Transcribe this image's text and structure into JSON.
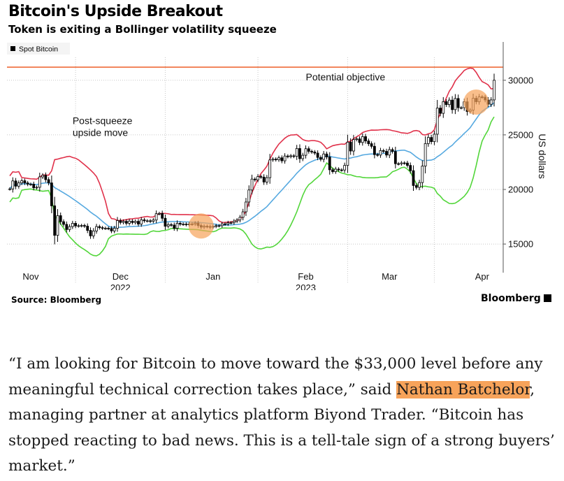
{
  "header": {
    "title": "Bitcoin's Upside Breakout",
    "subtitle": "Token is exiting a Bollinger volatility squeeze"
  },
  "footer": {
    "source": "Source: Bloomberg",
    "brand": "Bloomberg"
  },
  "article": {
    "quote_before": "“I am looking for Bitcoin to move toward the $33,000 level before any meaningful technical correction takes place,” said ",
    "person_name": "Nathan Batchelor",
    "quote_after": ", managing partner at analytics platform Biyond Trader. “Bitcoin has stopped reacting to bad news. This is a tell-tale sign of a strong buyers’ market.”"
  },
  "colors": {
    "upper_band": "#e0314a",
    "moving_average": "#56a9e0",
    "lower_band": "#52d63a",
    "objective_line": "#ef6b3a",
    "highlight": "#f7a35a",
    "candles": "#000000"
  },
  "chart_data": {
    "type": "candlestick",
    "legend": [
      "Spot Bitcoin"
    ],
    "legend_position": "top-left",
    "ylabel": "US dollars",
    "yticks": [
      15000,
      20000,
      25000,
      30000
    ],
    "ylim": [
      12700,
      32100
    ],
    "xlim": [
      "2022-10-25",
      "2023-04-05"
    ],
    "month_labels": [
      {
        "label": "Nov",
        "date": "2022-11-01"
      },
      {
        "label": "Dec",
        "date": "2022-12-01"
      },
      {
        "label": "Jan",
        "date": "2023-01-01"
      },
      {
        "label": "Feb",
        "date": "2023-02-01"
      },
      {
        "label": "Mar",
        "date": "2023-03-01"
      },
      {
        "label": "Apr",
        "date": "2023-04-01"
      }
    ],
    "year_labels": [
      {
        "label": "2022",
        "date": "2022-12-01"
      },
      {
        "label": "2023",
        "date": "2023-02-01"
      }
    ],
    "objective_line": 31200,
    "annotations": [
      {
        "lines": [
          "Potential objective"
        ],
        "x": "2023-02-01",
        "y": 30000
      },
      {
        "lines": [
          "Post-squeeze",
          "upside move"
        ],
        "x": "2022-11-15",
        "y": 26000
      }
    ],
    "highlight_circles": [
      {
        "x": "2022-12-28",
        "y": 16650
      },
      {
        "x": "2023-03-30",
        "y": 28000
      }
    ],
    "closes": [
      [
        "2022-10-25",
        20050
      ],
      [
        "2022-10-26",
        20780
      ],
      [
        "2022-10-27",
        20300
      ],
      [
        "2022-10-28",
        20600
      ],
      [
        "2022-10-29",
        20800
      ],
      [
        "2022-10-30",
        20600
      ],
      [
        "2022-10-31",
        20480
      ],
      [
        "2022-11-01",
        20480
      ],
      [
        "2022-11-02",
        20150
      ],
      [
        "2022-11-03",
        20200
      ],
      [
        "2022-11-04",
        21150
      ],
      [
        "2022-11-05",
        21300
      ],
      [
        "2022-11-06",
        20900
      ],
      [
        "2022-11-07",
        20600
      ],
      [
        "2022-11-08",
        18500
      ],
      [
        "2022-11-09",
        15800
      ],
      [
        "2022-11-10",
        17600
      ],
      [
        "2022-11-11",
        17050
      ],
      [
        "2022-11-12",
        16800
      ],
      [
        "2022-11-13",
        16330
      ],
      [
        "2022-11-14",
        16600
      ],
      [
        "2022-11-15",
        16900
      ],
      [
        "2022-11-16",
        16660
      ],
      [
        "2022-11-17",
        16680
      ],
      [
        "2022-11-18",
        16700
      ],
      [
        "2022-11-19",
        16640
      ],
      [
        "2022-11-20",
        16250
      ],
      [
        "2022-11-21",
        15750
      ],
      [
        "2022-11-22",
        16200
      ],
      [
        "2022-11-23",
        16600
      ],
      [
        "2022-11-24",
        16500
      ],
      [
        "2022-11-25",
        16450
      ],
      [
        "2022-11-26",
        16450
      ],
      [
        "2022-11-27",
        16430
      ],
      [
        "2022-11-28",
        16200
      ],
      [
        "2022-11-29",
        16450
      ],
      [
        "2022-11-30",
        17150
      ],
      [
        "2022-12-01",
        16980
      ],
      [
        "2022-12-02",
        17080
      ],
      [
        "2022-12-03",
        16900
      ],
      [
        "2022-12-04",
        17100
      ],
      [
        "2022-12-05",
        16970
      ],
      [
        "2022-12-06",
        17080
      ],
      [
        "2022-12-07",
        16830
      ],
      [
        "2022-12-08",
        17220
      ],
      [
        "2022-12-09",
        17130
      ],
      [
        "2022-12-10",
        17130
      ],
      [
        "2022-12-11",
        17080
      ],
      [
        "2022-12-12",
        17200
      ],
      [
        "2022-12-13",
        17780
      ],
      [
        "2022-12-14",
        17800
      ],
      [
        "2022-12-15",
        17360
      ],
      [
        "2022-12-16",
        16630
      ],
      [
        "2022-12-17",
        16780
      ],
      [
        "2022-12-18",
        16740
      ],
      [
        "2022-12-19",
        16440
      ],
      [
        "2022-12-20",
        16900
      ],
      [
        "2022-12-21",
        16820
      ],
      [
        "2022-12-22",
        16830
      ],
      [
        "2022-12-23",
        16780
      ],
      [
        "2022-12-24",
        16840
      ],
      [
        "2022-12-25",
        16830
      ],
      [
        "2022-12-26",
        16920
      ],
      [
        "2022-12-27",
        16700
      ],
      [
        "2022-12-28",
        16550
      ],
      [
        "2022-12-29",
        16630
      ],
      [
        "2022-12-30",
        16600
      ],
      [
        "2022-12-31",
        16540
      ],
      [
        "2023-01-01",
        16620
      ],
      [
        "2023-01-02",
        16680
      ],
      [
        "2023-01-03",
        16680
      ],
      [
        "2023-01-04",
        16850
      ],
      [
        "2023-01-05",
        16830
      ],
      [
        "2023-01-06",
        16950
      ],
      [
        "2023-01-07",
        16950
      ],
      [
        "2023-01-08",
        17100
      ],
      [
        "2023-01-09",
        17200
      ],
      [
        "2023-01-10",
        17450
      ],
      [
        "2023-01-11",
        17950
      ],
      [
        "2023-01-12",
        18850
      ],
      [
        "2023-01-13",
        19950
      ],
      [
        "2023-01-14",
        20950
      ],
      [
        "2023-01-15",
        20880
      ],
      [
        "2023-01-16",
        21180
      ],
      [
        "2023-01-17",
        21130
      ],
      [
        "2023-01-18",
        20680
      ],
      [
        "2023-01-19",
        21080
      ],
      [
        "2023-01-20",
        22700
      ],
      [
        "2023-01-21",
        22780
      ],
      [
        "2023-01-22",
        22720
      ],
      [
        "2023-01-23",
        22900
      ],
      [
        "2023-01-24",
        22620
      ],
      [
        "2023-01-25",
        23060
      ],
      [
        "2023-01-26",
        23010
      ],
      [
        "2023-01-27",
        23080
      ],
      [
        "2023-01-28",
        23030
      ],
      [
        "2023-01-29",
        23750
      ],
      [
        "2023-01-30",
        22820
      ],
      [
        "2023-01-31",
        23130
      ],
      [
        "2023-02-01",
        23730
      ],
      [
        "2023-02-02",
        23490
      ],
      [
        "2023-02-03",
        23430
      ],
      [
        "2023-02-04",
        23330
      ],
      [
        "2023-02-05",
        22930
      ],
      [
        "2023-02-06",
        22760
      ],
      [
        "2023-02-07",
        23250
      ],
      [
        "2023-02-08",
        22970
      ],
      [
        "2023-02-09",
        21800
      ],
      [
        "2023-02-10",
        21630
      ],
      [
        "2023-02-11",
        21860
      ],
      [
        "2023-02-12",
        21790
      ],
      [
        "2023-02-13",
        21780
      ],
      [
        "2023-02-14",
        22200
      ],
      [
        "2023-02-15",
        24330
      ],
      [
        "2023-02-16",
        23520
      ],
      [
        "2023-02-17",
        24570
      ],
      [
        "2023-02-18",
        24630
      ],
      [
        "2023-02-19",
        24300
      ],
      [
        "2023-02-20",
        24840
      ],
      [
        "2023-02-21",
        24440
      ],
      [
        "2023-02-22",
        24190
      ],
      [
        "2023-02-23",
        23950
      ],
      [
        "2023-02-24",
        23190
      ],
      [
        "2023-02-25",
        23150
      ],
      [
        "2023-02-26",
        23560
      ],
      [
        "2023-02-27",
        23490
      ],
      [
        "2023-02-28",
        23150
      ],
      [
        "2023-03-01",
        23650
      ],
      [
        "2023-03-02",
        23480
      ],
      [
        "2023-03-03",
        22360
      ],
      [
        "2023-03-04",
        22350
      ],
      [
        "2023-03-05",
        22430
      ],
      [
        "2023-03-06",
        22420
      ],
      [
        "2023-03-07",
        22200
      ],
      [
        "2023-03-08",
        21720
      ],
      [
        "2023-03-09",
        20360
      ],
      [
        "2023-03-10",
        20190
      ],
      [
        "2023-03-11",
        20630
      ],
      [
        "2023-03-12",
        22140
      ],
      [
        "2023-03-13",
        24200
      ],
      [
        "2023-03-14",
        24760
      ],
      [
        "2023-03-15",
        24380
      ],
      [
        "2023-03-16",
        25060
      ],
      [
        "2023-03-17",
        27450
      ],
      [
        "2023-03-18",
        26970
      ],
      [
        "2023-03-19",
        28040
      ],
      [
        "2023-03-20",
        27770
      ],
      [
        "2023-03-21",
        28180
      ],
      [
        "2023-03-22",
        27310
      ],
      [
        "2023-03-23",
        28330
      ],
      [
        "2023-03-24",
        27490
      ],
      [
        "2023-03-25",
        27490
      ],
      [
        "2023-03-26",
        28030
      ],
      [
        "2023-03-27",
        27140
      ],
      [
        "2023-03-28",
        27270
      ],
      [
        "2023-03-29",
        28350
      ],
      [
        "2023-03-30",
        28030
      ],
      [
        "2023-03-31",
        28480
      ],
      [
        "2023-04-01",
        28450
      ],
      [
        "2023-04-02",
        28200
      ],
      [
        "2023-04-03",
        27800
      ],
      [
        "2023-04-04",
        28200
      ],
      [
        "2023-04-05",
        30000
      ]
    ]
  }
}
